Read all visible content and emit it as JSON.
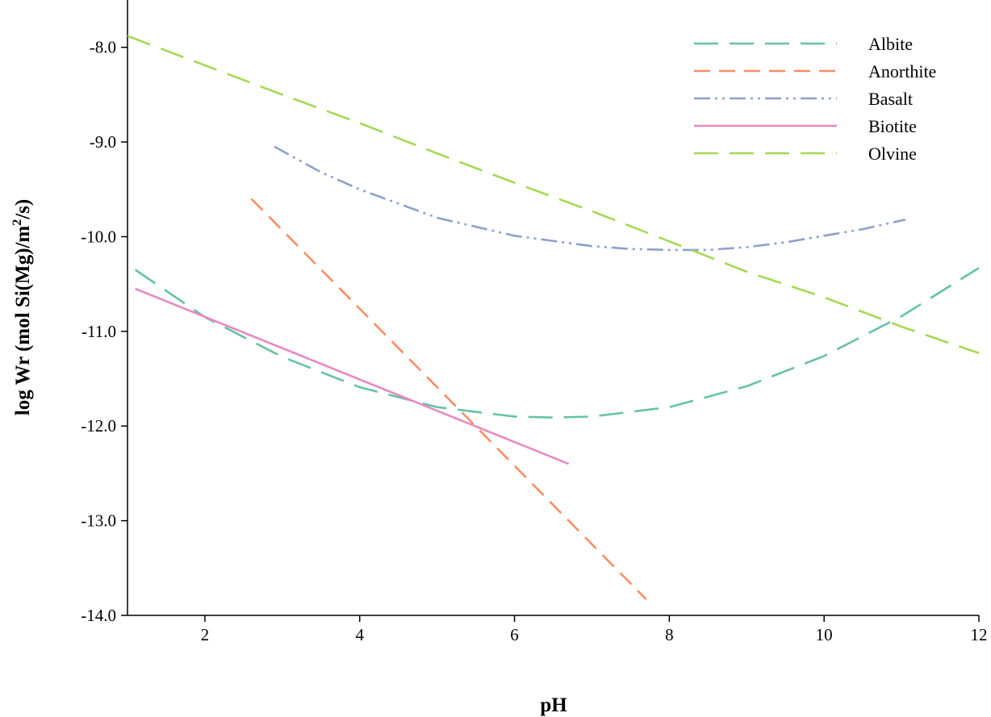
{
  "chart_data": {
    "type": "line",
    "title": "",
    "xlabel": "pH",
    "ylabel_main": "log Wr (mol Si(Mg)/m",
    "ylabel_sup": "2",
    "ylabel_end": "/s)",
    "xlim": [
      1,
      12
    ],
    "ylim": [
      -14.0,
      -7.5
    ],
    "x_ticks": [
      2,
      4,
      6,
      8,
      10,
      12
    ],
    "x_tick_labels": [
      "2",
      "4",
      "6",
      "8",
      "10",
      "12"
    ],
    "y_ticks": [
      -8.0,
      -9.0,
      -10.0,
      -11.0,
      -12.0,
      -13.0,
      -14.0
    ],
    "y_tick_labels": [
      "-8.0",
      "-9.0",
      "-10.0",
      "-11.0",
      "-12.0",
      "-13.0",
      "-14.0"
    ],
    "grid": false,
    "legend_position": "top-right",
    "series": [
      {
        "name": "Albite",
        "color": "#66c2a5",
        "dash": "long-dash",
        "x": [
          1.1,
          2.0,
          3.0,
          4.0,
          5.0,
          6.0,
          6.5,
          7.0,
          8.0,
          9.0,
          10.0,
          11.0,
          12.0
        ],
        "y": [
          -10.35,
          -10.85,
          -11.27,
          -11.59,
          -11.8,
          -11.9,
          -11.91,
          -11.9,
          -11.8,
          -11.58,
          -11.26,
          -10.84,
          -10.33
        ]
      },
      {
        "name": "Anorthite",
        "color": "#fc8d62",
        "dash": "dash",
        "x": [
          2.6,
          7.7
        ],
        "y": [
          -9.6,
          -13.83
        ]
      },
      {
        "name": "Basalt",
        "color": "#8da0cb",
        "dash": "dash-dot-dot",
        "x": [
          2.9,
          3.5,
          4.0,
          5.0,
          6.0,
          7.0,
          7.5,
          8.0,
          8.5,
          9.0,
          9.5,
          10.0,
          10.5,
          11.05
        ],
        "y": [
          -9.05,
          -9.32,
          -9.5,
          -9.8,
          -9.99,
          -10.1,
          -10.13,
          -10.14,
          -10.14,
          -10.11,
          -10.06,
          -9.99,
          -9.92,
          -9.82
        ]
      },
      {
        "name": "Biotite",
        "color": "#e78ac3",
        "dash": "solid",
        "x": [
          1.1,
          6.7
        ],
        "y": [
          -10.55,
          -12.4
        ]
      },
      {
        "name": "Olvine",
        "color": "#a6d854",
        "dash": "long-dash",
        "x": [
          1.0,
          2.0,
          3.0,
          4.0,
          5.0,
          6.0,
          7.0,
          8.0,
          9.0,
          10.0,
          11.0,
          12.0
        ],
        "y": [
          -7.88,
          -8.19,
          -8.5,
          -8.8,
          -9.12,
          -9.43,
          -9.73,
          -10.05,
          -10.37,
          -10.64,
          -10.95,
          -11.23
        ]
      }
    ]
  }
}
